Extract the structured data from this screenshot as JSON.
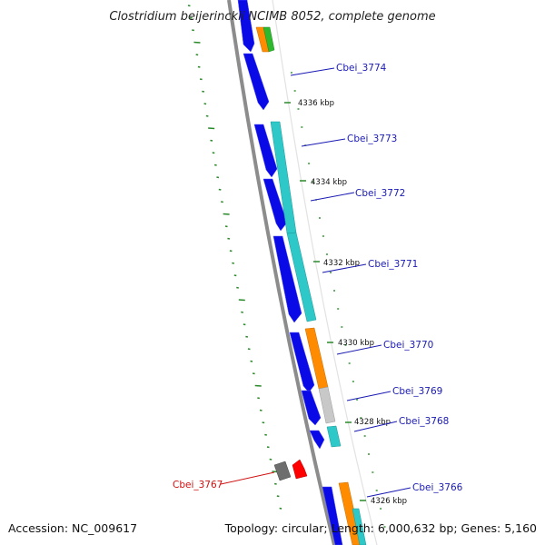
{
  "title": "Clostridium beijerinckii NCIMB 8052, complete genome",
  "accession": "Accession: NC_009617",
  "summary": "Topology: circular; Length: 6,000,632 bp; Genes: 5,160",
  "colors": {
    "background": "#ffffff",
    "backbone": "#8c8c8c",
    "cds_forward": "#0a0ae6",
    "cds_reverse": "#2ec8c8",
    "label_forward": "#1a1ab4",
    "label_reverse": "#d01010",
    "gc_ticks": "#2a8a2a"
  },
  "scale_labels": [
    "4336 kbp",
    "4334 kbp",
    "4332 kbp",
    "4330 kbp",
    "4328 kbp",
    "4326 kbp"
  ],
  "gene_labels": [
    {
      "text": "Cbei_3774",
      "strand": "forward"
    },
    {
      "text": "Cbei_3773",
      "strand": "forward"
    },
    {
      "text": "Cbei_3772",
      "strand": "forward"
    },
    {
      "text": "Cbei_3771",
      "strand": "forward"
    },
    {
      "text": "Cbei_3770",
      "strand": "forward"
    },
    {
      "text": "Cbei_3769",
      "strand": "forward"
    },
    {
      "text": "Cbei_3768",
      "strand": "forward"
    },
    {
      "text": "Cbei_3767",
      "strand": "reverse"
    },
    {
      "text": "Cbei_3766",
      "strand": "forward"
    }
  ]
}
